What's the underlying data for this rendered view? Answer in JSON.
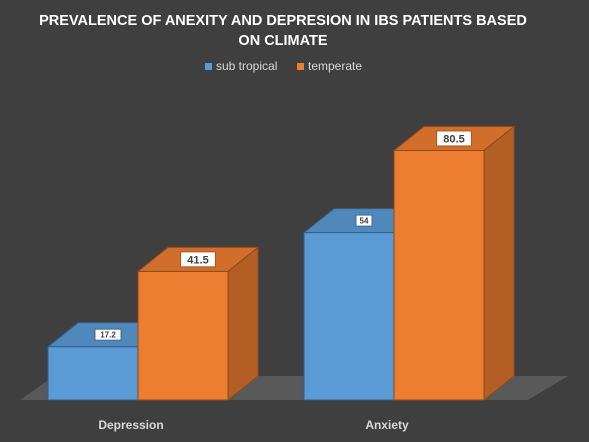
{
  "chart_data": {
    "type": "bar",
    "title_lines": [
      "PREVALENCE OF ANEXITY AND DEPRESION IN IBS PATIENTS BASED",
      "ON CLIMATE"
    ],
    "categories": [
      "Depression",
      "Anxiety"
    ],
    "series": [
      {
        "name": "sub tropical",
        "values": [
          17.2,
          54
        ],
        "color": "#5b9bd5"
      },
      {
        "name": "temperate",
        "values": [
          41.5,
          80.5
        ],
        "color": "#ed7d31"
      }
    ],
    "data_labels": [
      [
        "17.2",
        "54"
      ],
      [
        "41.5",
        "80.5"
      ]
    ],
    "ylim": [
      0,
      100
    ],
    "grid": false,
    "legend_position": "top",
    "style_3d": true,
    "background_color": "#3f3f3f",
    "floor_color": "#595959"
  }
}
